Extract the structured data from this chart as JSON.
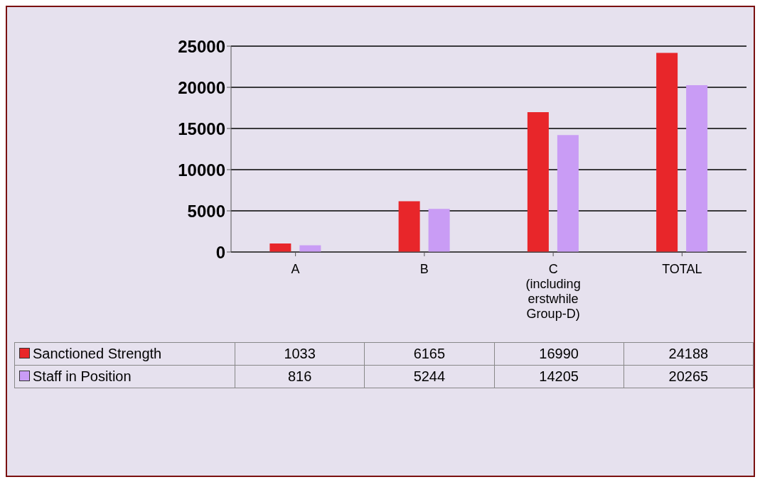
{
  "chart_data": {
    "type": "bar",
    "categories": [
      "A",
      "B",
      "C (including erstwhile Group-D)",
      "TOTAL"
    ],
    "series": [
      {
        "name": "Sanctioned Strength",
        "color": "#e8262a",
        "values": [
          1033,
          6165,
          16990,
          24188
        ]
      },
      {
        "name": "Staff in Position",
        "color": "#c99cf5",
        "values": [
          816,
          5244,
          14205,
          20265
        ]
      }
    ],
    "ylim": [
      0,
      25000
    ],
    "yticks": [
      0,
      5000,
      10000,
      15000,
      20000,
      25000
    ],
    "grid": "y",
    "legend": "bottom",
    "data_labels": true
  }
}
